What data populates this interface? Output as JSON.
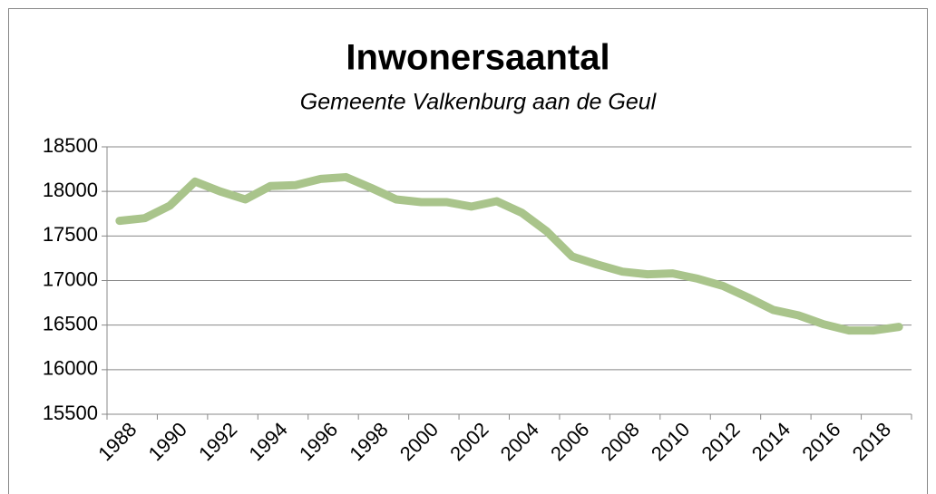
{
  "chart_data": {
    "type": "line",
    "title": "Inwonersaantal",
    "subtitle": "Gemeente Valkenburg aan de Geul",
    "categories": [
      "1988",
      null,
      "1990",
      null,
      "1992",
      null,
      "1994",
      null,
      "1996",
      null,
      "1998",
      null,
      "2000",
      null,
      "2002",
      null,
      "2004",
      null,
      "2006",
      null,
      "2008",
      null,
      "2010",
      null,
      "2012",
      null,
      "2014",
      null,
      "2016",
      null,
      "2018",
      null
    ],
    "series": [
      {
        "name": "Inwonersaantal",
        "color": "#a9c48b",
        "values": [
          17670,
          17700,
          17840,
          18110,
          18000,
          17910,
          18060,
          18070,
          18140,
          18160,
          18040,
          17910,
          17880,
          17880,
          17830,
          17890,
          17760,
          17550,
          17270,
          17180,
          17100,
          17070,
          17080,
          17020,
          16940,
          16810,
          16670,
          16610,
          16510,
          16440,
          16440,
          16480
        ]
      }
    ],
    "ylim": [
      15500,
      18500
    ],
    "yticks": [
      15500,
      16000,
      16500,
      17000,
      17500,
      18000,
      18500
    ],
    "grid": true
  }
}
